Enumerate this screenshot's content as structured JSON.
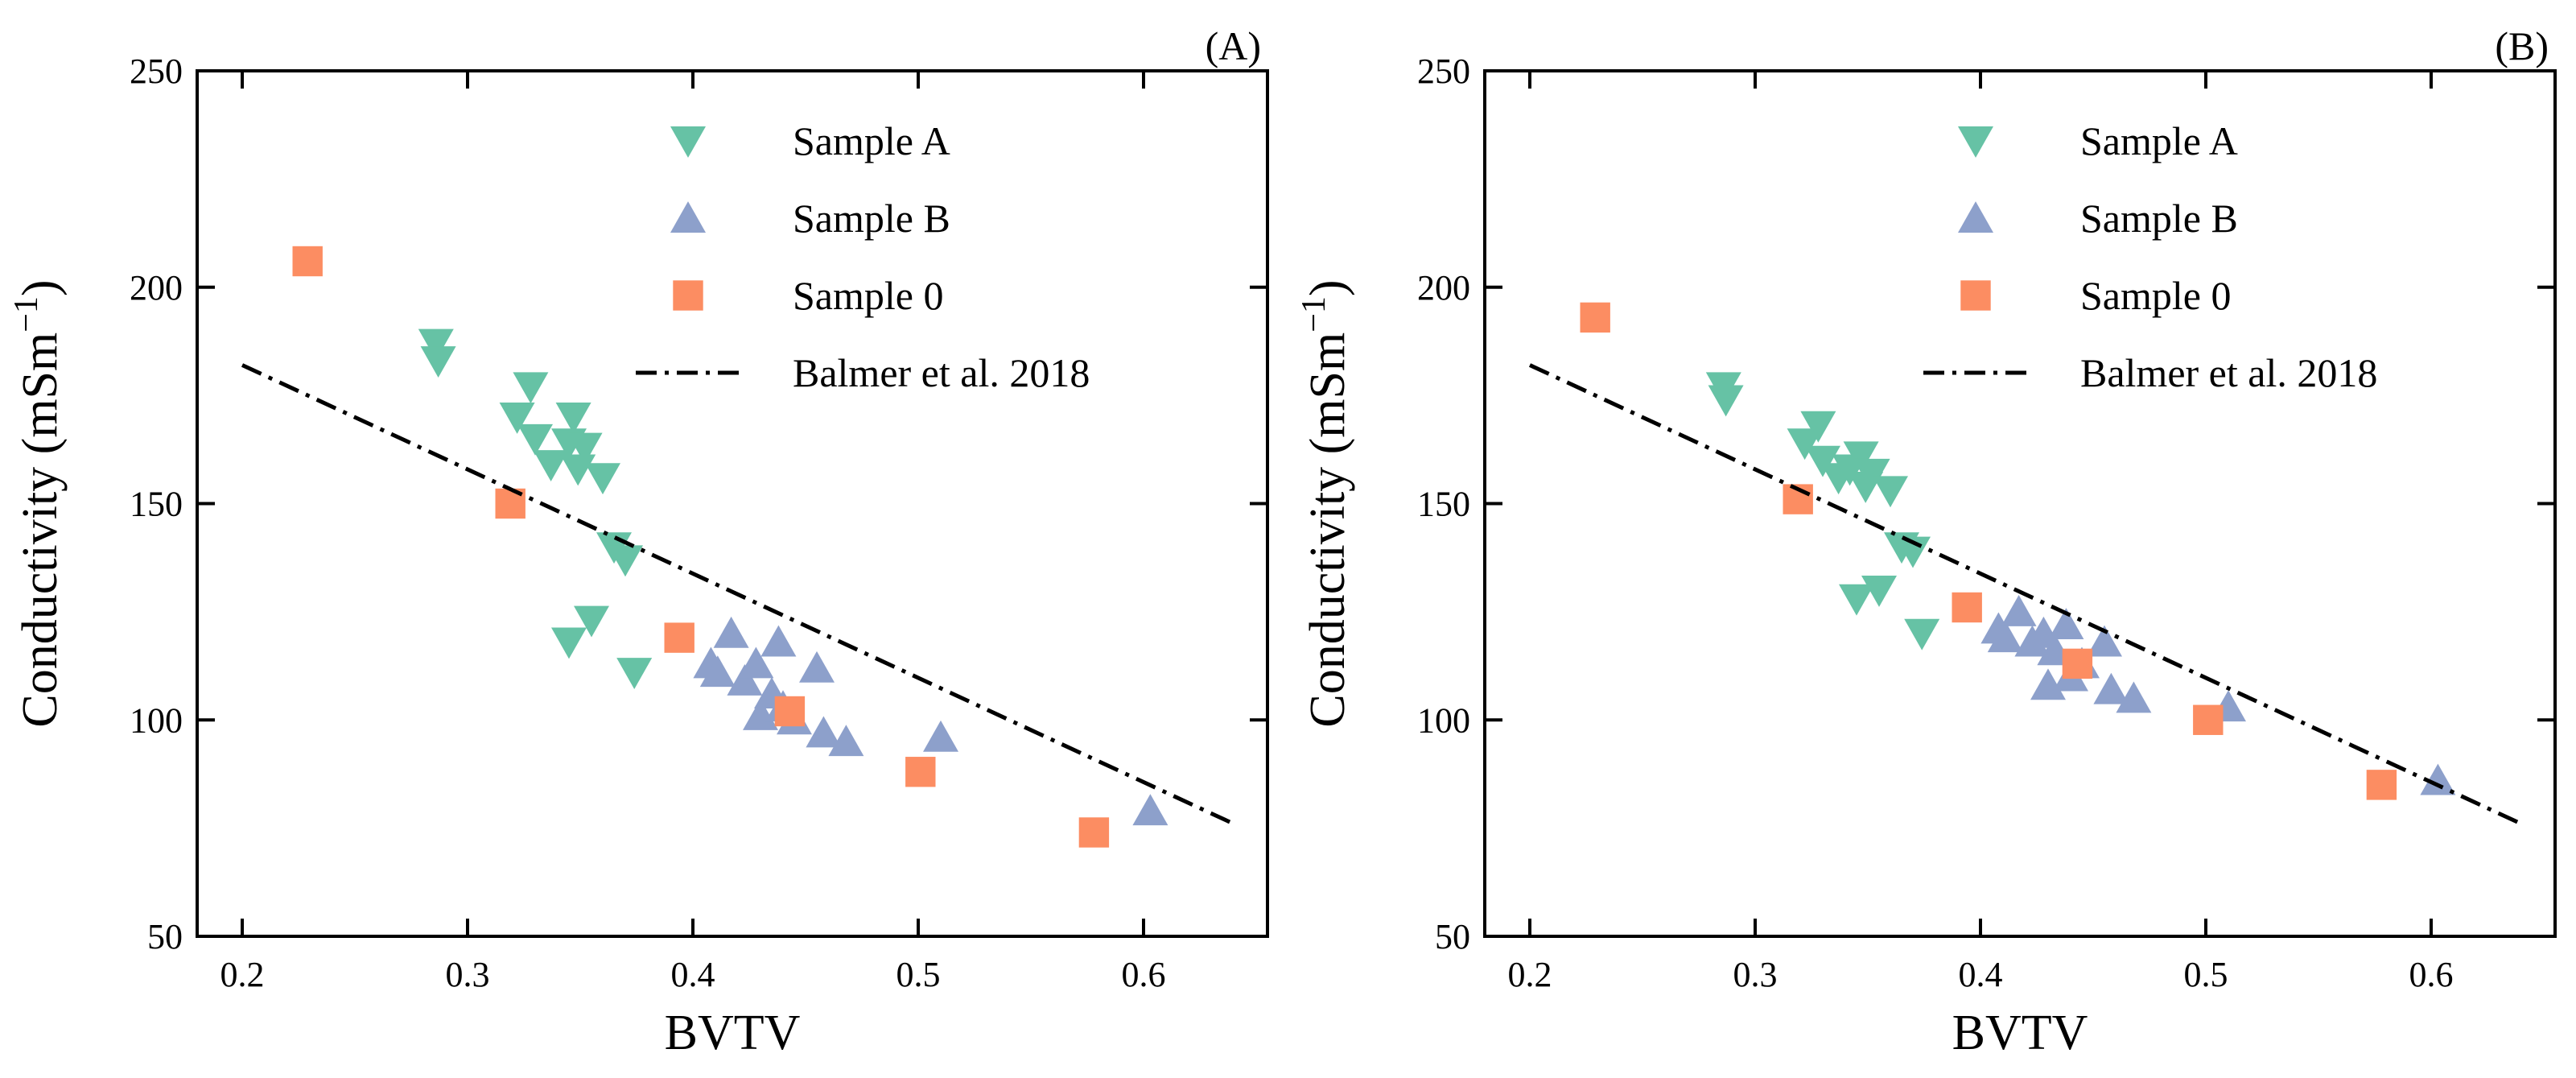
{
  "chart_data": [
    {
      "type": "scatter",
      "panel_label": "(A)",
      "xlabel": "BVTV",
      "ylabel": "Conductivity (mSm",
      "ylabel_sup": "−1",
      "ylabel_close": ")",
      "xlim": [
        0.18,
        0.655
      ],
      "ylim": [
        50,
        250
      ],
      "xticks": [
        0.2,
        0.3,
        0.4,
        0.5,
        0.6
      ],
      "xtick_labels": [
        "0.2",
        "0.3",
        "0.4",
        "0.5",
        "0.6"
      ],
      "yticks": [
        50,
        100,
        150,
        200,
        250
      ],
      "ytick_labels": [
        "50",
        "100",
        "150",
        "200",
        "250"
      ],
      "legend_position": "top-right",
      "series": [
        {
          "name": "Sample A",
          "marker": "triangle-down",
          "color": "#66c2a5",
          "points": [
            [
              0.286,
              187
            ],
            [
              0.287,
              183
            ],
            [
              0.322,
              170
            ],
            [
              0.328,
              177
            ],
            [
              0.33,
              165
            ],
            [
              0.337,
              159
            ],
            [
              0.345,
              164
            ],
            [
              0.347,
              170
            ],
            [
              0.349,
              158
            ],
            [
              0.352,
              163
            ],
            [
              0.36,
              156
            ],
            [
              0.365,
              140
            ],
            [
              0.37,
              137
            ],
            [
              0.345,
              118
            ],
            [
              0.355,
              123
            ],
            [
              0.374,
              111
            ]
          ]
        },
        {
          "name": "Sample B",
          "marker": "triangle-up",
          "color": "#8da0cb",
          "points": [
            [
              0.408,
              113
            ],
            [
              0.411,
              111
            ],
            [
              0.417,
              120
            ],
            [
              0.423,
              109
            ],
            [
              0.428,
              113
            ],
            [
              0.43,
              101
            ],
            [
              0.435,
              106
            ],
            [
              0.438,
              118
            ],
            [
              0.44,
              103
            ],
            [
              0.445,
              100
            ],
            [
              0.455,
              112
            ],
            [
              0.458,
              97
            ],
            [
              0.468,
              95
            ],
            [
              0.51,
              96
            ],
            [
              0.603,
              79
            ]
          ]
        },
        {
          "name": "Sample 0",
          "marker": "square",
          "color": "#fc8d62",
          "points": [
            [
              0.229,
              206
            ],
            [
              0.319,
              150
            ],
            [
              0.394,
              119
            ],
            [
              0.443,
              102
            ],
            [
              0.501,
              88
            ],
            [
              0.578,
              74
            ]
          ]
        },
        {
          "name": "Balmer et al. 2018",
          "type": "line",
          "style": "dash-dot",
          "color": "#000000",
          "points": [
            [
              0.2,
              182
            ],
            [
              0.64,
              76
            ]
          ]
        }
      ]
    },
    {
      "type": "scatter",
      "panel_label": "(B)",
      "xlabel": "BVTV",
      "ylabel": "Conductivity (mSm",
      "ylabel_sup": "−1",
      "ylabel_close": ")",
      "xlim": [
        0.18,
        0.655
      ],
      "ylim": [
        50,
        250
      ],
      "xticks": [
        0.2,
        0.3,
        0.4,
        0.5,
        0.6
      ],
      "xtick_labels": [
        "0.2",
        "0.3",
        "0.4",
        "0.5",
        "0.6"
      ],
      "yticks": [
        50,
        100,
        150,
        200,
        250
      ],
      "ytick_labels": [
        "50",
        "100",
        "150",
        "200",
        "250"
      ],
      "legend_position": "top-right",
      "series": [
        {
          "name": "Sample A",
          "marker": "triangle-down",
          "color": "#66c2a5",
          "points": [
            [
              0.286,
              177
            ],
            [
              0.287,
              174
            ],
            [
              0.322,
              164
            ],
            [
              0.328,
              168
            ],
            [
              0.33,
              160
            ],
            [
              0.337,
              156
            ],
            [
              0.342,
              158
            ],
            [
              0.347,
              161
            ],
            [
              0.349,
              154
            ],
            [
              0.352,
              157
            ],
            [
              0.36,
              153
            ],
            [
              0.365,
              140
            ],
            [
              0.37,
              139
            ],
            [
              0.345,
              128
            ],
            [
              0.355,
              130
            ],
            [
              0.374,
              120
            ]
          ]
        },
        {
          "name": "Sample B",
          "marker": "triangle-up",
          "color": "#8da0cb",
          "points": [
            [
              0.408,
              121
            ],
            [
              0.411,
              119
            ],
            [
              0.417,
              125
            ],
            [
              0.423,
              118
            ],
            [
              0.428,
              120
            ],
            [
              0.43,
              108
            ],
            [
              0.433,
              116
            ],
            [
              0.438,
              122
            ],
            [
              0.44,
              110
            ],
            [
              0.445,
              113
            ],
            [
              0.455,
              118
            ],
            [
              0.458,
              107
            ],
            [
              0.468,
              105
            ],
            [
              0.51,
              103
            ],
            [
              0.603,
              86
            ]
          ]
        },
        {
          "name": "Sample 0",
          "marker": "square",
          "color": "#fc8d62",
          "points": [
            [
              0.229,
              193
            ],
            [
              0.319,
              151
            ],
            [
              0.394,
              126
            ],
            [
              0.443,
              113
            ],
            [
              0.501,
              100
            ],
            [
              0.578,
              85
            ]
          ]
        },
        {
          "name": "Balmer et al. 2018",
          "type": "line",
          "style": "dash-dot",
          "color": "#000000",
          "points": [
            [
              0.2,
              182
            ],
            [
              0.64,
              76
            ]
          ]
        }
      ]
    }
  ]
}
